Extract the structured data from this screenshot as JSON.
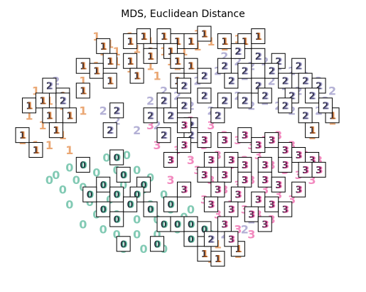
{
  "chart_data": {
    "type": "scatter",
    "title": "MDS, Euclidean Distance",
    "xlabel": "",
    "ylabel": "",
    "axes_visible": false,
    "grid": false,
    "legend": "none",
    "xlim": [
      0,
      100
    ],
    "ylim": [
      0,
      100
    ],
    "colors": {
      "0": "#1b9e77",
      "1": "#d95f02",
      "2": "#7570b3",
      "3": "#e7298a"
    },
    "marker_style": "digit glyph; boxed thumbnails show the digit image",
    "series": [
      {
        "name": "0",
        "points": [
          [
            16,
            45
          ],
          [
            21,
            46
          ],
          [
            27,
            49
          ],
          [
            33,
            50
          ],
          [
            12,
            42
          ],
          [
            18,
            40
          ],
          [
            24,
            43
          ],
          [
            30,
            44
          ],
          [
            36,
            44
          ],
          [
            40,
            41
          ],
          [
            14,
            36
          ],
          [
            20,
            37
          ],
          [
            26,
            38
          ],
          [
            32,
            38
          ],
          [
            38,
            36
          ],
          [
            44,
            34
          ],
          [
            22,
            31
          ],
          [
            28,
            32
          ],
          [
            34,
            31
          ],
          [
            40,
            30
          ],
          [
            46,
            28
          ],
          [
            50,
            25
          ],
          [
            24,
            26
          ],
          [
            30,
            26
          ],
          [
            36,
            24
          ],
          [
            42,
            24
          ],
          [
            48,
            20
          ],
          [
            54,
            20
          ],
          [
            58,
            18
          ],
          [
            30,
            18
          ],
          [
            36,
            18
          ],
          [
            42,
            18
          ],
          [
            32,
            12
          ],
          [
            38,
            12
          ],
          [
            44,
            12
          ],
          [
            10,
            40
          ],
          [
            16,
            30
          ],
          [
            26,
            20
          ],
          [
            20,
            22
          ],
          [
            52,
            28
          ]
        ],
        "thumbnails": [
          [
            20,
            46
          ],
          [
            30,
            49
          ],
          [
            26,
            38
          ],
          [
            32,
            42
          ],
          [
            38,
            38
          ],
          [
            22,
            34
          ],
          [
            30,
            34
          ],
          [
            36,
            34
          ],
          [
            26,
            28
          ],
          [
            34,
            30
          ],
          [
            40,
            28
          ],
          [
            44,
            22
          ],
          [
            48,
            22
          ],
          [
            52,
            22
          ],
          [
            56,
            20
          ],
          [
            32,
            14
          ],
          [
            42,
            14
          ],
          [
            52,
            16
          ],
          [
            46,
            30
          ],
          [
            30,
            24
          ]
        ]
      },
      {
        "name": "1",
        "points": [
          [
            24,
            98
          ],
          [
            28,
            95
          ],
          [
            34,
            98
          ],
          [
            40,
            96
          ],
          [
            46,
            97
          ],
          [
            50,
            92
          ],
          [
            54,
            99
          ],
          [
            58,
            96
          ],
          [
            62,
            94
          ],
          [
            66,
            97
          ],
          [
            44,
            92
          ],
          [
            36,
            93
          ],
          [
            24,
            86
          ],
          [
            30,
            88
          ],
          [
            34,
            85
          ],
          [
            40,
            86
          ],
          [
            46,
            88
          ],
          [
            20,
            80
          ],
          [
            6,
            76
          ],
          [
            10,
            72
          ],
          [
            14,
            70
          ],
          [
            4,
            66
          ],
          [
            8,
            62
          ],
          [
            12,
            60
          ],
          [
            2,
            56
          ],
          [
            6,
            54
          ],
          [
            10,
            54
          ],
          [
            14,
            58
          ],
          [
            16,
            52
          ],
          [
            94,
            64
          ],
          [
            88,
            58
          ],
          [
            20,
            68
          ],
          [
            54,
            94
          ],
          [
            48,
            86
          ],
          [
            66,
            10
          ],
          [
            58,
            8
          ],
          [
            60,
            14
          ],
          [
            26,
            92
          ],
          [
            30,
            92
          ],
          [
            42,
            82
          ]
        ],
        "thumbnails": [
          [
            56,
            99
          ],
          [
            62,
            96
          ],
          [
            68,
            96
          ],
          [
            72,
            98
          ],
          [
            48,
            96
          ],
          [
            52,
            96
          ],
          [
            26,
            94
          ],
          [
            34,
            96
          ],
          [
            38,
            98
          ],
          [
            44,
            98
          ],
          [
            40,
            92
          ],
          [
            46,
            92
          ],
          [
            48,
            88
          ],
          [
            52,
            86
          ],
          [
            20,
            86
          ],
          [
            28,
            88
          ],
          [
            34,
            88
          ],
          [
            40,
            90
          ],
          [
            24,
            84
          ],
          [
            36,
            82
          ],
          [
            48,
            80
          ],
          [
            20,
            76
          ],
          [
            8,
            72
          ],
          [
            14,
            74
          ],
          [
            4,
            70
          ],
          [
            10,
            66
          ],
          [
            16,
            66
          ],
          [
            2,
            58
          ],
          [
            12,
            60
          ],
          [
            6,
            52
          ],
          [
            94,
            66
          ],
          [
            88,
            60
          ],
          [
            66,
            12
          ],
          [
            56,
            10
          ],
          [
            60,
            8
          ],
          [
            28,
            80
          ]
        ]
      },
      {
        "name": "2",
        "points": [
          [
            62,
            90
          ],
          [
            66,
            88
          ],
          [
            70,
            86
          ],
          [
            74,
            88
          ],
          [
            78,
            86
          ],
          [
            82,
            84
          ],
          [
            86,
            82
          ],
          [
            90,
            80
          ],
          [
            94,
            76
          ],
          [
            60,
            84
          ],
          [
            64,
            80
          ],
          [
            68,
            82
          ],
          [
            72,
            78
          ],
          [
            76,
            80
          ],
          [
            80,
            78
          ],
          [
            84,
            76
          ],
          [
            88,
            74
          ],
          [
            92,
            72
          ],
          [
            54,
            80
          ],
          [
            56,
            74
          ],
          [
            58,
            68
          ],
          [
            62,
            72
          ],
          [
            66,
            74
          ],
          [
            70,
            70
          ],
          [
            74,
            72
          ],
          [
            78,
            70
          ],
          [
            82,
            68
          ],
          [
            86,
            66
          ],
          [
            90,
            68
          ],
          [
            40,
            72
          ],
          [
            44,
            76
          ],
          [
            48,
            74
          ],
          [
            52,
            70
          ],
          [
            46,
            66
          ],
          [
            42,
            62
          ],
          [
            36,
            60
          ],
          [
            50,
            62
          ],
          [
            26,
            68
          ],
          [
            30,
            64
          ],
          [
            12,
            80
          ],
          [
            14,
            74
          ],
          [
            62,
            18
          ],
          [
            68,
            20
          ],
          [
            70,
            24
          ]
        ],
        "thumbnails": [
          [
            66,
            92
          ],
          [
            72,
            90
          ],
          [
            78,
            88
          ],
          [
            84,
            86
          ],
          [
            62,
            86
          ],
          [
            68,
            84
          ],
          [
            76,
            84
          ],
          [
            80,
            80
          ],
          [
            86,
            80
          ],
          [
            90,
            78
          ],
          [
            56,
            82
          ],
          [
            64,
            80
          ],
          [
            72,
            78
          ],
          [
            82,
            74
          ],
          [
            88,
            74
          ],
          [
            92,
            70
          ],
          [
            56,
            74
          ],
          [
            62,
            72
          ],
          [
            68,
            72
          ],
          [
            74,
            74
          ],
          [
            80,
            70
          ],
          [
            86,
            66
          ],
          [
            50,
            78
          ],
          [
            44,
            72
          ],
          [
            50,
            70
          ],
          [
            40,
            66
          ],
          [
            46,
            66
          ],
          [
            52,
            62
          ],
          [
            30,
            68
          ],
          [
            28,
            60
          ],
          [
            44,
            58
          ],
          [
            52,
            58
          ],
          [
            60,
            66
          ],
          [
            10,
            78
          ],
          [
            14,
            72
          ],
          [
            58,
            16
          ]
        ]
      },
      {
        "name": "3",
        "points": [
          [
            52,
            64
          ],
          [
            58,
            62
          ],
          [
            62,
            58
          ],
          [
            66,
            56
          ],
          [
            70,
            54
          ],
          [
            74,
            56
          ],
          [
            78,
            58
          ],
          [
            82,
            54
          ],
          [
            86,
            50
          ],
          [
            90,
            48
          ],
          [
            56,
            54
          ],
          [
            60,
            50
          ],
          [
            64,
            46
          ],
          [
            68,
            48
          ],
          [
            72,
            50
          ],
          [
            76,
            46
          ],
          [
            80,
            44
          ],
          [
            84,
            42
          ],
          [
            88,
            40
          ],
          [
            54,
            44
          ],
          [
            58,
            40
          ],
          [
            62,
            36
          ],
          [
            66,
            38
          ],
          [
            70,
            40
          ],
          [
            74,
            36
          ],
          [
            78,
            34
          ],
          [
            82,
            32
          ],
          [
            64,
            30
          ],
          [
            68,
            28
          ],
          [
            72,
            26
          ],
          [
            76,
            24
          ],
          [
            66,
            20
          ],
          [
            70,
            18
          ],
          [
            40,
            62
          ],
          [
            42,
            54
          ],
          [
            48,
            52
          ],
          [
            52,
            48
          ],
          [
            56,
            32
          ],
          [
            60,
            26
          ],
          [
            64,
            16
          ],
          [
            46,
            40
          ],
          [
            80,
            50
          ]
        ],
        "thumbnails": [
          [
            50,
            62
          ],
          [
            50,
            54
          ],
          [
            56,
            56
          ],
          [
            62,
            56
          ],
          [
            68,
            58
          ],
          [
            72,
            54
          ],
          [
            76,
            56
          ],
          [
            80,
            52
          ],
          [
            84,
            50
          ],
          [
            88,
            48
          ],
          [
            58,
            48
          ],
          [
            64,
            48
          ],
          [
            68,
            46
          ],
          [
            74,
            46
          ],
          [
            80,
            46
          ],
          [
            86,
            44
          ],
          [
            90,
            44
          ],
          [
            56,
            42
          ],
          [
            62,
            42
          ],
          [
            68,
            40
          ],
          [
            74,
            40
          ],
          [
            78,
            38
          ],
          [
            84,
            36
          ],
          [
            60,
            36
          ],
          [
            66,
            34
          ],
          [
            72,
            32
          ],
          [
            76,
            30
          ],
          [
            80,
            28
          ],
          [
            58,
            30
          ],
          [
            64,
            28
          ],
          [
            70,
            26
          ],
          [
            74,
            22
          ],
          [
            62,
            22
          ],
          [
            50,
            36
          ],
          [
            46,
            48
          ],
          [
            64,
            16
          ]
        ]
      }
    ]
  }
}
